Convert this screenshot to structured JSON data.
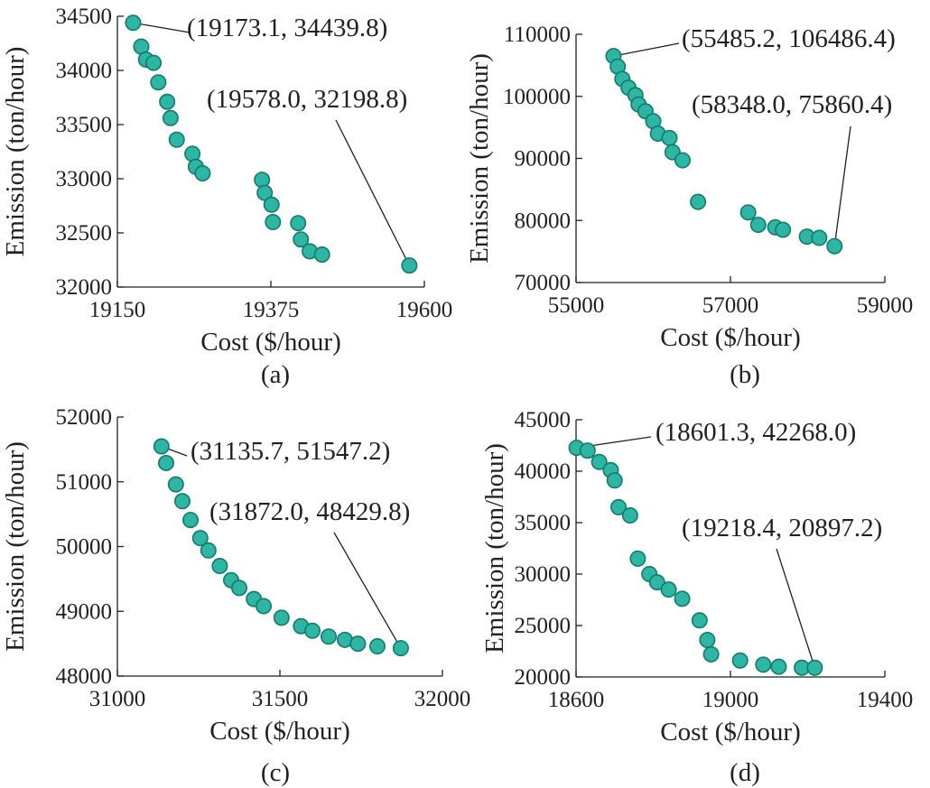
{
  "style": {
    "marker_color": "#2fb5a3",
    "marker_edge": "#0f7c6c",
    "axis_color": "#231f20"
  },
  "chart_data": [
    {
      "type": "scatter",
      "panel_label": "(a)",
      "xlabel": "Cost ($/hour)",
      "ylabel": "Emission (ton/hour)",
      "xlim": [
        19150,
        19600
      ],
      "ylim": [
        32000,
        34500
      ],
      "xticks": [
        19150,
        19375,
        19600
      ],
      "yticks": [
        32000,
        32500,
        33000,
        33500,
        34000,
        34500
      ],
      "points": [
        [
          19173.1,
          34439.8
        ],
        [
          19185,
          34220
        ],
        [
          19192,
          34100
        ],
        [
          19203,
          34070
        ],
        [
          19210,
          33890
        ],
        [
          19223,
          33710
        ],
        [
          19228,
          33560
        ],
        [
          19237,
          33360
        ],
        [
          19260,
          33230
        ],
        [
          19265,
          33110
        ],
        [
          19275,
          33050
        ],
        [
          19362,
          32990
        ],
        [
          19366,
          32870
        ],
        [
          19376,
          32760
        ],
        [
          19378,
          32600
        ],
        [
          19415,
          32590
        ],
        [
          19419,
          32440
        ],
        [
          19432,
          32330
        ],
        [
          19450,
          32300
        ],
        [
          19578.0,
          32198.8
        ]
      ],
      "annotations": [
        {
          "text": "(19173.1, 34439.8)",
          "point": [
            19173.1,
            34439.8
          ]
        },
        {
          "text": "(19578.0, 32198.8)",
          "point": [
            19578.0,
            32198.8
          ]
        }
      ]
    },
    {
      "type": "scatter",
      "panel_label": "(b)",
      "xlabel": "Cost ($/hour)",
      "ylabel": "Emission (ton/hour)",
      "xlim": [
        55000,
        59000
      ],
      "ylim": [
        70000,
        110000
      ],
      "xticks": [
        55000,
        57000,
        59000
      ],
      "yticks": [
        70000,
        80000,
        90000,
        100000,
        110000
      ],
      "points": [
        [
          55485.2,
          106486.4
        ],
        [
          55540,
          104800
        ],
        [
          55600,
          102800
        ],
        [
          55680,
          101400
        ],
        [
          55770,
          100200
        ],
        [
          55810,
          98700
        ],
        [
          55900,
          97600
        ],
        [
          56000,
          96000
        ],
        [
          56060,
          94000
        ],
        [
          56210,
          93300
        ],
        [
          56250,
          91000
        ],
        [
          56380,
          89700
        ],
        [
          56580,
          83000
        ],
        [
          57230,
          81300
        ],
        [
          57360,
          79300
        ],
        [
          57580,
          78900
        ],
        [
          57680,
          78500
        ],
        [
          57990,
          77400
        ],
        [
          58150,
          77200
        ],
        [
          58348.0,
          75860.4
        ]
      ],
      "annotations": [
        {
          "text": "(55485.2, 106486.4)",
          "point": [
            55485.2,
            106486.4
          ]
        },
        {
          "text": "(58348.0, 75860.4)",
          "point": [
            58348.0,
            75860.4
          ]
        }
      ]
    },
    {
      "type": "scatter",
      "panel_label": "(c)",
      "xlabel": "Cost ($/hour)",
      "ylabel": "Emission (ton/hour)",
      "xlim": [
        31000,
        32000
      ],
      "ylim": [
        48000,
        52000
      ],
      "xticks": [
        31000,
        31500,
        32000
      ],
      "yticks": [
        48000,
        49000,
        50000,
        51000,
        52000
      ],
      "points": [
        [
          31135.7,
          51547.2
        ],
        [
          31150,
          51290
        ],
        [
          31180,
          50960
        ],
        [
          31200,
          50700
        ],
        [
          31225,
          50410
        ],
        [
          31255,
          50130
        ],
        [
          31280,
          49940
        ],
        [
          31315,
          49700
        ],
        [
          31350,
          49480
        ],
        [
          31375,
          49360
        ],
        [
          31420,
          49190
        ],
        [
          31450,
          49080
        ],
        [
          31505,
          48900
        ],
        [
          31565,
          48770
        ],
        [
          31600,
          48700
        ],
        [
          31650,
          48610
        ],
        [
          31700,
          48560
        ],
        [
          31740,
          48500
        ],
        [
          31800,
          48460
        ],
        [
          31872.0,
          48429.8
        ]
      ],
      "annotations": [
        {
          "text": "(31135.7, 51547.2)",
          "point": [
            31135.7,
            51547.2
          ]
        },
        {
          "text": "(31872.0, 48429.8)",
          "point": [
            31872.0,
            48429.8
          ]
        }
      ]
    },
    {
      "type": "scatter",
      "panel_label": "(d)",
      "xlabel": "Cost ($/hour)",
      "ylabel": "Emission (ton/hour)",
      "xlim": [
        18600,
        19400
      ],
      "ylim": [
        20000,
        45000
      ],
      "xticks": [
        18600,
        19000,
        19400
      ],
      "yticks": [
        20000,
        25000,
        30000,
        35000,
        40000,
        45000
      ],
      "points": [
        [
          18601.3,
          42268.0
        ],
        [
          18630,
          42000
        ],
        [
          18660,
          40900
        ],
        [
          18690,
          40100
        ],
        [
          18700,
          39100
        ],
        [
          18710,
          36500
        ],
        [
          18740,
          35700
        ],
        [
          18760,
          31500
        ],
        [
          18790,
          30000
        ],
        [
          18810,
          29200
        ],
        [
          18840,
          28500
        ],
        [
          18875,
          27600
        ],
        [
          18920,
          25500
        ],
        [
          18940,
          23600
        ],
        [
          18950,
          22200
        ],
        [
          19025,
          21600
        ],
        [
          19085,
          21200
        ],
        [
          19125,
          21000
        ],
        [
          19185,
          20900
        ],
        [
          19218.4,
          20897.2
        ]
      ],
      "annotations": [
        {
          "text": "(18601.3, 42268.0)",
          "point": [
            18601.3,
            42268.0
          ]
        },
        {
          "text": "(19218.4, 20897.2)",
          "point": [
            19218.4,
            20897.2
          ]
        }
      ]
    }
  ]
}
